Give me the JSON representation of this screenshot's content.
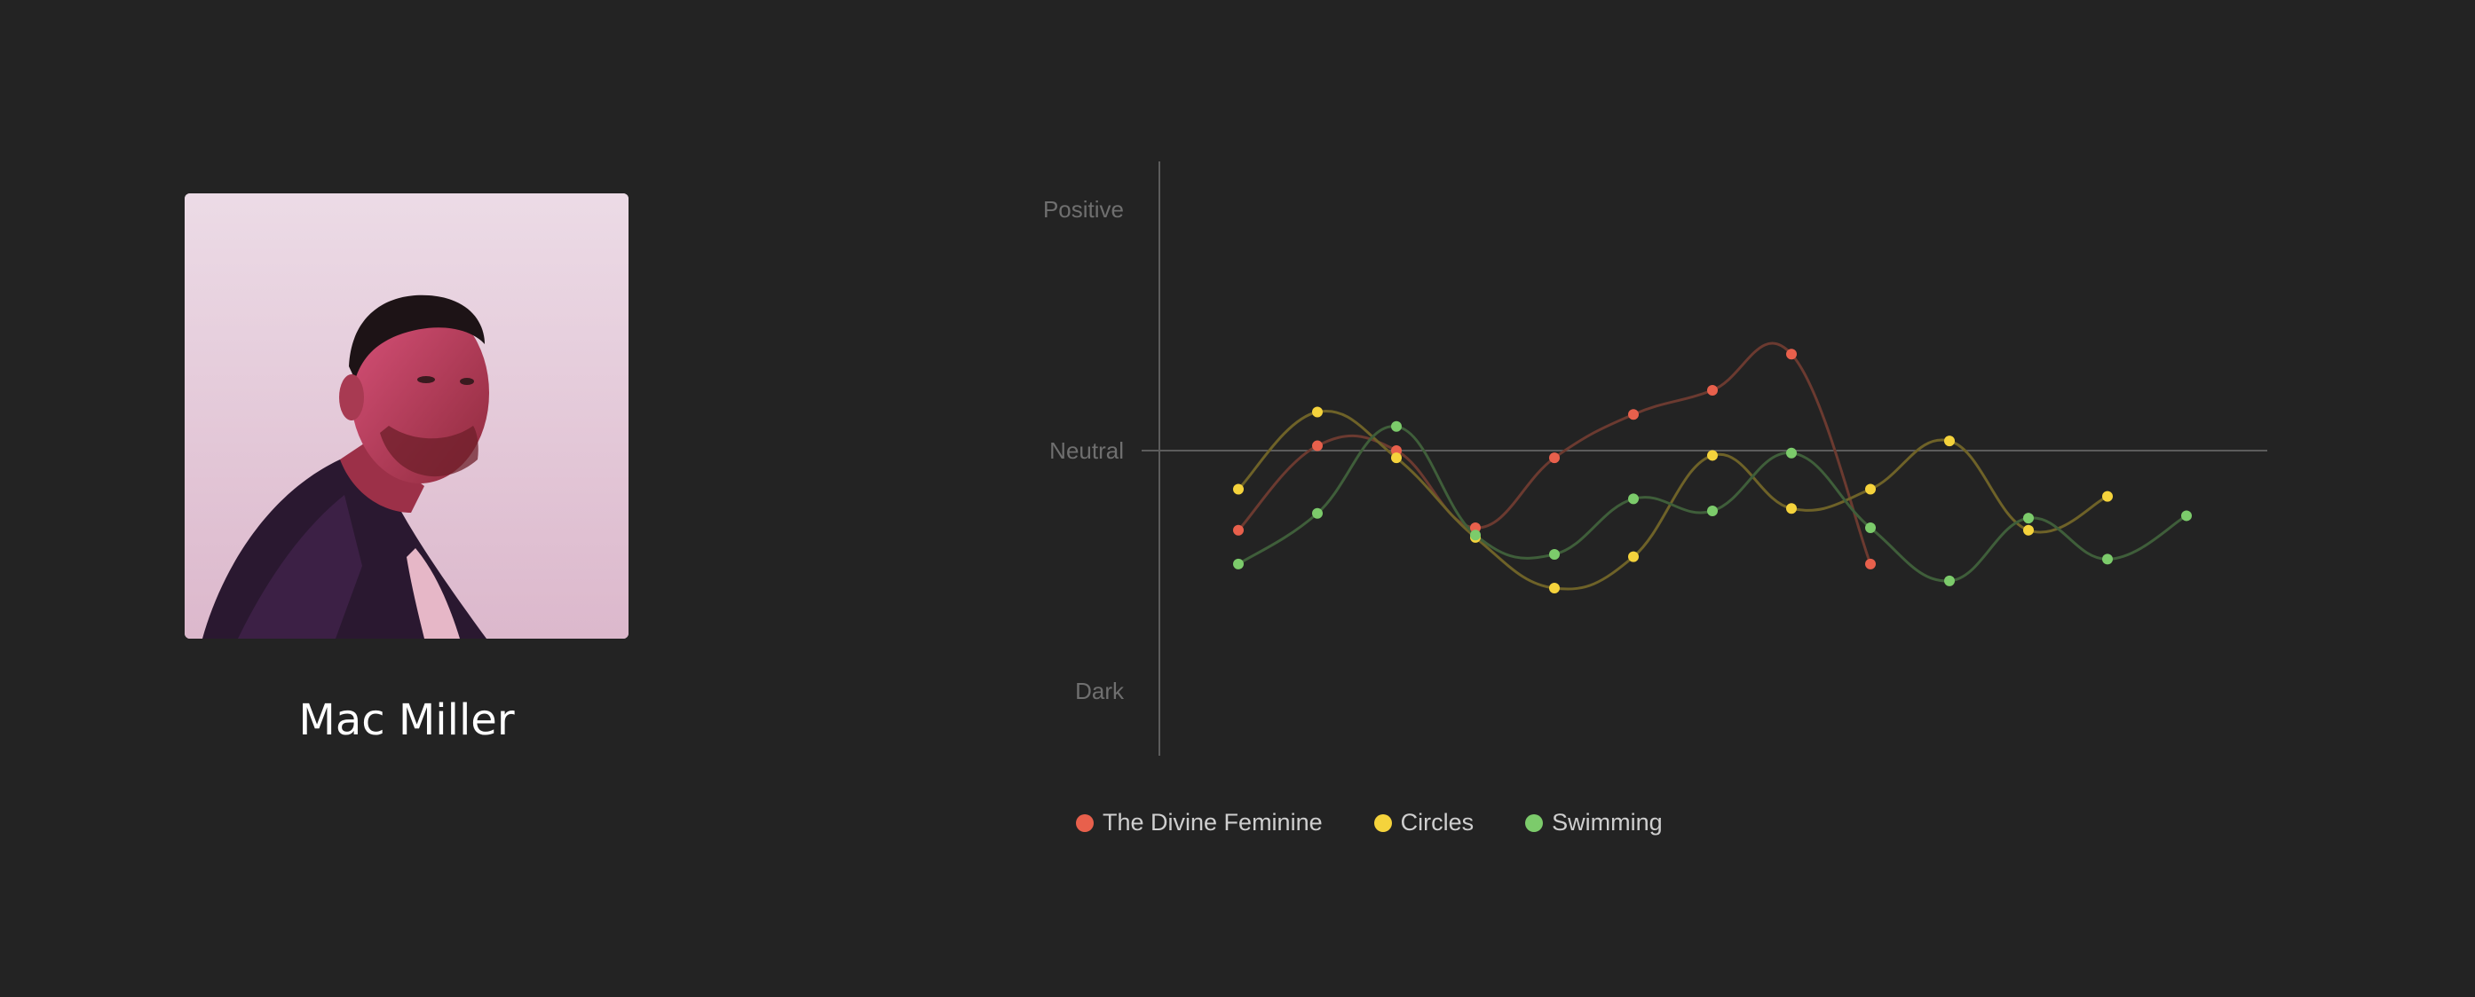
{
  "artist": {
    "name": "Mac Miller",
    "photo_icon": "artist-portrait"
  },
  "chart_data": {
    "type": "line",
    "title": "",
    "xlabel": "",
    "ylabel": "",
    "y_tick_labels": [
      "Positive",
      "Neutral",
      "Dark"
    ],
    "ylim": [
      -1,
      1
    ],
    "grid": false,
    "legend_position": "bottom-left",
    "series": [
      {
        "name": "The Divine Feminine",
        "color": "#e8604c",
        "line_color": "#6b3a30",
        "values": [
          -0.33,
          0.02,
          0.0,
          -0.32,
          -0.03,
          0.15,
          0.25,
          0.4,
          -0.47
        ]
      },
      {
        "name": "Circles",
        "color": "#f5d33c",
        "line_color": "#6e6228",
        "values": [
          -0.16,
          0.16,
          -0.03,
          -0.36,
          -0.57,
          -0.44,
          -0.02,
          -0.24,
          -0.16,
          0.04,
          -0.33,
          -0.19
        ]
      },
      {
        "name": "Swimming",
        "color": "#7ccb6b",
        "line_color": "#3f5e3a",
        "values": [
          -0.47,
          -0.26,
          0.1,
          -0.35,
          -0.43,
          -0.2,
          -0.25,
          -0.01,
          -0.32,
          -0.54,
          -0.28,
          -0.45,
          -0.27
        ]
      }
    ]
  }
}
